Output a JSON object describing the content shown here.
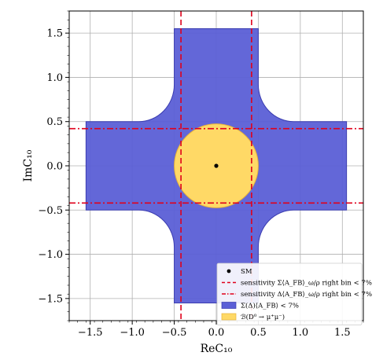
{
  "chart_data": {
    "type": "region",
    "xlabel": "ReC₁₀",
    "ylabel": "ImC₁₀",
    "xlim": [
      -1.75,
      1.75
    ],
    "ylim": [
      -1.75,
      1.75
    ],
    "xticks": [
      -1.5,
      -1.0,
      -0.5,
      0.0,
      0.5,
      1.0,
      1.5
    ],
    "yticks": [
      -1.5,
      -1.0,
      -0.5,
      0.0,
      0.5,
      1.0,
      1.5
    ],
    "xtick_labels": [
      "−1.5",
      "−1.0",
      "−0.5",
      "0.0",
      "0.5",
      "1.0",
      "1.5"
    ],
    "ytick_labels": [
      "−1.5",
      "−1.0",
      "−0.5",
      "0.0",
      "0.5",
      "1.0",
      "1.5"
    ],
    "grid": true,
    "legend_position": "bottom-right",
    "sm_point": {
      "x": 0.0,
      "y": 0.0
    },
    "vertical_sensitivity_lines": [
      -0.42,
      0.42
    ],
    "horizontal_sensitivity_lines": [
      -0.42,
      0.42
    ],
    "circle_region": {
      "center": [
        0,
        0
      ],
      "radius": 0.5
    },
    "cross_region": {
      "arm_half_width": 0.5,
      "extent": 1.55,
      "corner_radius": 0.42
    },
    "colors": {
      "cross": "#5b5fd6",
      "cross_edge": "#3a3cb0",
      "circle": "#ffd966",
      "circle_edge": "#e8b23a",
      "lines": "#e0001b"
    },
    "legend": [
      {
        "label": "SM",
        "marker": "dot"
      },
      {
        "label": "sensitivity Σ⟨A_FB⟩_ω/ρ right bin < 7%",
        "marker": "dashed"
      },
      {
        "label": "sensitivity Δ⟨A_FB⟩_ω/ρ right bin < 7%",
        "marker": "dashdot"
      },
      {
        "label": "Σ(Δ)⟨A_FB⟩ < 7%",
        "marker": "patch-blue"
      },
      {
        "label": "ℬ(D⁰ → μ⁺μ⁻)",
        "marker": "patch-yellow"
      }
    ]
  }
}
